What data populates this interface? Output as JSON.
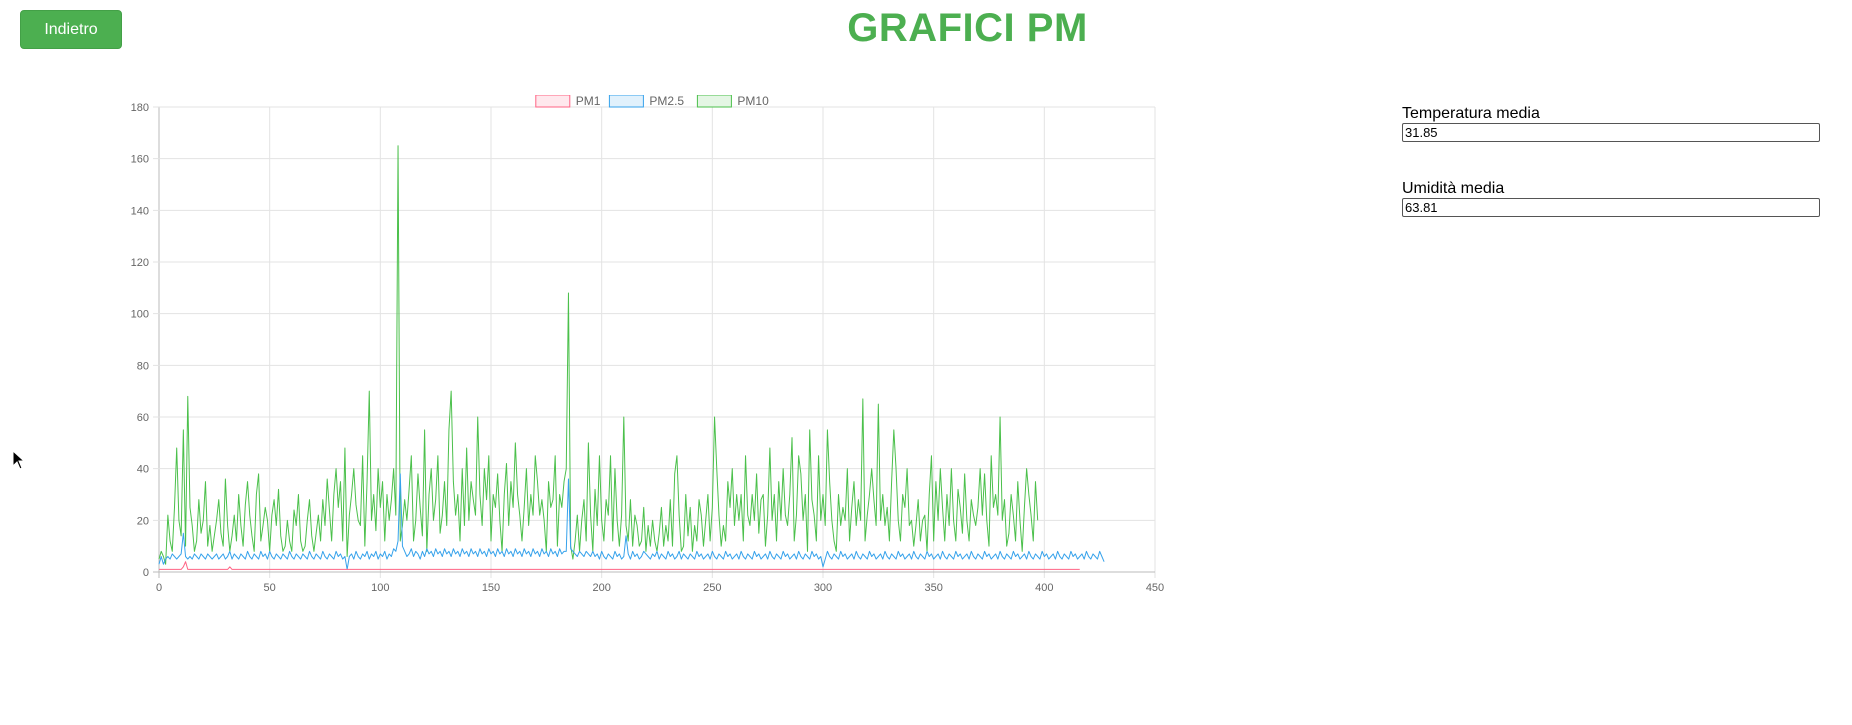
{
  "header": {
    "back_label": "Indietro",
    "title": "GRAFICI PM"
  },
  "stats": [
    {
      "label": "Temperatura media",
      "value": "31.85"
    },
    {
      "label": "Umidità media",
      "value": "63.81"
    }
  ],
  "chart_data": {
    "type": "line",
    "title": "",
    "xlabel": "",
    "ylabel": "",
    "xlim": [
      0,
      450
    ],
    "ylim": [
      0,
      180
    ],
    "x_ticks": [
      0,
      50,
      100,
      150,
      200,
      250,
      300,
      350,
      400,
      450
    ],
    "y_ticks": [
      0,
      20,
      40,
      60,
      80,
      100,
      120,
      140,
      160,
      180
    ],
    "grid": true,
    "legend_position": "top-center",
    "n_points": 417,
    "series": [
      {
        "name": "PM1",
        "color": "#ff6384",
        "values": [
          1,
          1,
          1,
          1,
          1,
          1,
          1,
          1,
          1,
          1,
          1,
          2,
          4,
          1,
          1,
          1,
          1,
          1,
          1,
          1,
          1,
          1,
          1,
          1,
          1,
          1,
          1,
          1,
          1,
          1,
          1,
          1,
          2,
          1,
          1,
          1,
          1,
          1,
          1,
          1,
          1,
          1,
          1,
          1,
          1,
          1,
          1,
          1,
          1,
          1,
          1,
          1,
          1,
          1,
          1,
          1,
          1,
          1,
          1,
          1,
          1,
          1,
          1,
          1,
          1,
          1,
          1,
          1,
          1,
          1,
          1,
          1,
          1,
          1,
          1,
          1,
          1,
          1,
          1,
          1,
          1,
          1,
          1,
          1,
          1,
          1,
          1,
          1,
          1,
          1,
          1,
          1,
          1,
          1,
          1,
          1,
          1,
          1,
          1,
          1,
          1,
          1,
          1,
          1,
          1,
          1,
          1,
          1,
          1,
          1,
          1,
          1,
          1,
          1,
          1,
          1,
          1,
          1,
          1,
          1,
          1,
          1,
          1,
          1,
          1,
          1,
          1,
          1,
          1,
          1,
          1,
          1,
          1,
          1,
          1,
          1,
          1,
          1,
          1,
          1,
          1,
          1,
          1,
          1,
          1,
          1,
          1,
          1,
          1,
          1,
          1,
          1,
          1,
          1,
          1,
          1,
          1,
          1,
          1,
          1,
          1,
          1,
          1,
          1,
          1,
          1,
          1,
          1,
          1,
          1,
          1,
          1,
          1,
          1,
          1,
          1,
          1,
          1,
          1,
          1,
          1,
          1,
          1,
          1,
          1,
          1,
          1,
          1,
          1,
          1,
          1,
          1,
          1,
          1,
          1,
          1,
          1,
          1,
          1,
          1,
          1,
          1,
          1,
          1,
          1,
          1,
          1,
          1,
          1,
          1,
          1,
          1,
          1,
          1,
          1,
          1,
          1,
          1,
          1,
          1,
          1,
          1,
          1,
          1,
          1,
          1,
          1,
          1,
          1,
          1,
          1,
          1,
          1,
          1,
          1,
          1,
          1,
          1,
          1,
          1,
          1,
          1,
          1,
          1,
          1,
          1,
          1,
          1,
          1,
          1,
          1,
          1,
          1,
          1,
          1,
          1,
          1,
          1,
          1,
          1,
          1,
          1,
          1,
          1,
          1,
          1,
          1,
          1,
          1,
          1,
          1,
          1,
          1,
          1,
          1,
          1,
          1,
          1,
          1,
          1,
          1,
          1,
          1,
          1,
          1,
          1,
          1,
          1,
          1,
          1,
          1,
          1,
          1,
          1,
          1,
          1,
          1,
          1,
          1,
          1,
          1,
          1,
          1,
          1,
          1,
          1,
          1,
          1,
          1,
          1,
          1,
          1,
          1,
          1,
          1,
          1,
          1,
          1,
          1,
          1,
          1,
          1,
          1,
          1,
          1,
          1,
          1,
          1,
          1,
          1,
          1,
          1,
          1,
          1,
          1,
          1,
          1,
          1,
          1,
          1,
          1,
          1,
          1,
          1,
          1,
          1,
          1,
          1,
          1,
          1,
          1,
          1,
          1,
          1,
          1,
          1,
          1,
          1,
          1,
          1,
          1,
          1,
          1,
          1,
          1,
          1,
          1,
          1,
          1,
          1,
          1,
          1,
          1,
          1,
          1,
          1,
          1,
          1,
          1,
          1,
          1,
          1,
          1,
          1,
          1,
          1,
          1,
          1,
          1,
          1,
          1,
          1,
          1,
          1,
          1,
          1,
          1,
          1,
          1,
          1,
          1,
          1,
          1,
          1,
          1,
          1,
          1,
          1,
          1,
          1,
          1,
          1,
          1,
          1,
          1,
          1,
          1
        ]
      },
      {
        "name": "PM2.5",
        "color": "#36a2eb",
        "values": [
          3,
          6,
          3,
          5,
          6,
          5,
          7,
          6,
          5,
          6,
          7,
          15,
          6,
          5,
          6,
          5,
          7,
          6,
          5,
          7,
          6,
          5,
          7,
          6,
          5,
          6,
          7,
          5,
          6,
          7,
          5,
          6,
          8,
          5,
          7,
          6,
          5,
          7,
          6,
          5,
          8,
          6,
          5,
          7,
          6,
          5,
          8,
          6,
          7,
          5,
          8,
          6,
          5,
          7,
          6,
          5,
          7,
          6,
          5,
          8,
          6,
          5,
          7,
          6,
          5,
          7,
          6,
          5,
          8,
          6,
          5,
          7,
          6,
          5,
          8,
          6,
          5,
          7,
          6,
          5,
          8,
          6,
          7,
          5,
          6,
          1,
          6,
          7,
          5,
          8,
          6,
          5,
          7,
          6,
          8,
          5,
          7,
          6,
          8,
          5,
          7,
          6,
          8,
          5,
          7,
          6,
          9,
          8,
          12,
          38,
          10,
          8,
          6,
          7,
          9,
          6,
          8,
          7,
          5,
          8,
          6,
          9,
          7,
          8,
          6,
          9,
          7,
          8,
          6,
          9,
          7,
          8,
          6,
          9,
          7,
          8,
          6,
          9,
          7,
          8,
          6,
          9,
          7,
          8,
          6,
          9,
          7,
          8,
          6,
          9,
          7,
          8,
          6,
          9,
          7,
          8,
          6,
          9,
          7,
          8,
          6,
          9,
          7,
          8,
          6,
          9,
          7,
          8,
          6,
          9,
          7,
          8,
          6,
          9,
          7,
          8,
          6,
          9,
          7,
          8,
          6,
          9,
          7,
          8,
          8,
          36,
          9,
          8,
          7,
          6,
          8,
          7,
          6,
          8,
          7,
          6,
          8,
          6,
          7,
          5,
          8,
          6,
          5,
          7,
          6,
          5,
          8,
          6,
          7,
          5,
          6,
          14,
          7,
          5,
          8,
          6,
          7,
          5,
          6,
          8,
          7,
          6,
          5,
          7,
          6,
          8,
          5,
          7,
          6,
          5,
          8,
          6,
          7,
          5,
          6,
          8,
          5,
          7,
          6,
          5,
          7,
          6,
          5,
          8,
          6,
          7,
          5,
          6,
          7,
          5,
          8,
          6,
          5,
          7,
          6,
          5,
          8,
          6,
          7,
          5,
          6,
          7,
          5,
          8,
          6,
          5,
          7,
          6,
          5,
          8,
          6,
          7,
          5,
          6,
          7,
          5,
          8,
          6,
          5,
          7,
          6,
          5,
          8,
          6,
          7,
          5,
          6,
          7,
          5,
          8,
          6,
          5,
          7,
          6,
          5,
          8,
          6,
          7,
          5,
          6,
          2,
          5,
          8,
          6,
          5,
          7,
          6,
          5,
          8,
          6,
          7,
          5,
          6,
          7,
          5,
          8,
          6,
          5,
          7,
          6,
          5,
          8,
          6,
          7,
          5,
          6,
          7,
          5,
          8,
          6,
          5,
          7,
          6,
          5,
          8,
          6,
          7,
          5,
          6,
          7,
          5,
          8,
          6,
          5,
          7,
          6,
          5,
          8,
          6,
          7,
          5,
          6,
          7,
          5,
          8,
          6,
          5,
          7,
          6,
          5,
          8,
          6,
          7,
          5,
          6,
          7,
          5,
          8,
          6,
          5,
          7,
          6,
          5,
          8,
          6,
          7,
          5,
          6,
          7,
          5,
          8,
          6,
          5,
          7,
          6,
          5,
          8,
          6,
          7,
          5,
          6,
          7,
          5,
          8,
          6,
          5,
          7,
          6,
          5,
          8,
          6,
          7,
          5,
          6,
          7,
          5,
          8,
          6,
          5,
          7,
          6,
          5,
          8,
          6,
          7,
          5,
          6,
          7,
          5,
          8,
          6,
          5,
          7,
          6,
          5,
          8,
          6,
          4
        ]
      },
      {
        "name": "PM10",
        "color": "#4bc04b",
        "values": [
          5,
          8,
          6,
          3,
          22,
          12,
          8,
          25,
          48,
          20,
          14,
          55,
          10,
          68,
          25,
          18,
          8,
          12,
          28,
          15,
          20,
          35,
          10,
          18,
          8,
          14,
          20,
          28,
          15,
          10,
          36,
          18,
          8,
          14,
          22,
          12,
          30,
          18,
          10,
          26,
          35,
          22,
          14,
          8,
          30,
          38,
          12,
          18,
          25,
          20,
          8,
          22,
          28,
          18,
          32,
          14,
          8,
          10,
          20,
          12,
          8,
          24,
          18,
          30,
          12,
          8,
          10,
          20,
          28,
          14,
          8,
          15,
          22,
          12,
          28,
          18,
          36,
          24,
          12,
          30,
          40,
          25,
          35,
          12,
          48,
          6,
          22,
          30,
          40,
          26,
          20,
          18,
          45,
          10,
          35,
          70,
          20,
          30,
          16,
          40,
          25,
          35,
          12,
          30,
          20,
          28,
          40,
          22,
          165,
          12,
          18,
          28,
          20,
          32,
          45,
          12,
          20,
          38,
          25,
          14,
          55,
          8,
          30,
          40,
          20,
          28,
          45,
          15,
          22,
          35,
          18,
          55,
          70,
          35,
          22,
          30,
          12,
          40,
          18,
          48,
          20,
          35,
          28,
          22,
          60,
          30,
          18,
          40,
          28,
          45,
          12,
          30,
          25,
          38,
          20,
          8,
          30,
          42,
          18,
          35,
          25,
          50,
          30,
          22,
          12,
          25,
          40,
          18,
          30,
          22,
          45,
          35,
          22,
          28,
          20,
          8,
          35,
          25,
          28,
          45,
          10,
          30,
          25,
          35,
          40,
          108,
          10,
          5,
          12,
          22,
          8,
          20,
          28,
          12,
          50,
          22,
          8,
          32,
          18,
          45,
          20,
          12,
          28,
          22,
          45,
          12,
          40,
          20,
          10,
          22,
          60,
          18,
          12,
          28,
          10,
          22,
          18,
          10,
          12,
          25,
          8,
          18,
          10,
          20,
          12,
          8,
          15,
          25,
          10,
          18,
          12,
          28,
          10,
          38,
          45,
          22,
          8,
          10,
          30,
          14,
          25,
          8,
          18,
          12,
          28,
          22,
          10,
          20,
          30,
          12,
          25,
          60,
          40,
          22,
          10,
          18,
          12,
          35,
          25,
          40,
          18,
          30,
          20,
          30,
          12,
          45,
          22,
          18,
          30,
          20,
          38,
          15,
          28,
          30,
          10,
          22,
          48,
          20,
          30,
          12,
          35,
          20,
          40,
          22,
          18,
          30,
          52,
          12,
          22,
          45,
          38,
          20,
          30,
          8,
          55,
          28,
          22,
          12,
          45,
          20,
          30,
          18,
          55,
          35,
          20,
          12,
          8,
          30,
          18,
          25,
          20,
          40,
          12,
          25,
          35,
          18,
          28,
          20,
          67,
          12,
          22,
          30,
          40,
          28,
          18,
          65,
          20,
          30,
          18,
          25,
          12,
          35,
          55,
          40,
          20,
          12,
          30,
          25,
          40,
          18,
          20,
          10,
          18,
          28,
          12,
          20,
          22,
          8,
          30,
          45,
          12,
          35,
          20,
          40,
          25,
          12,
          30,
          18,
          40,
          20,
          12,
          32,
          25,
          15,
          38,
          20,
          12,
          28,
          22,
          18,
          25,
          40,
          22,
          38,
          20,
          10,
          45,
          25,
          30,
          22,
          60,
          20,
          28,
          10,
          15,
          30,
          22,
          12,
          35,
          20,
          8,
          25,
          40,
          30,
          22,
          12,
          35,
          20
        ]
      }
    ]
  }
}
